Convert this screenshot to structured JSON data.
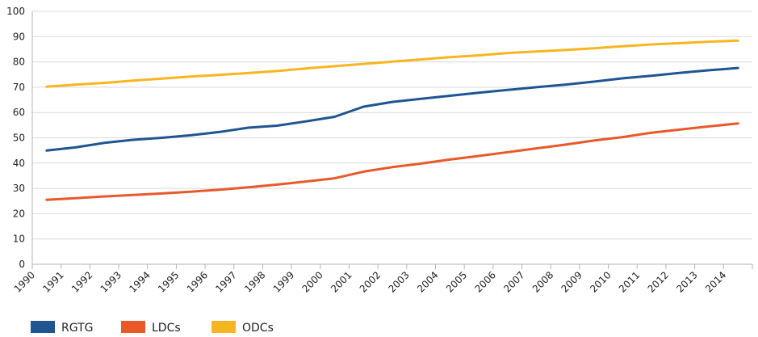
{
  "chart_data": {
    "type": "line",
    "title": "",
    "xlabel": "",
    "ylabel": "",
    "x": [
      "1990",
      "1991",
      "1992",
      "1993",
      "1994",
      "1995",
      "1996",
      "1997",
      "1998",
      "1999",
      "2000",
      "2001",
      "2002",
      "2003",
      "2004",
      "2005",
      "2006",
      "2007",
      "2008",
      "2009",
      "2010",
      "2011",
      "2012",
      "2013",
      "2014"
    ],
    "ylim": [
      0,
      100
    ],
    "yticks": [
      0,
      10,
      20,
      30,
      40,
      50,
      60,
      70,
      80,
      90,
      100
    ],
    "grid": true,
    "legend_position": "bottom-left",
    "series": [
      {
        "name": "RGTG",
        "color": "#1f5590",
        "values": [
          45.0,
          46.2,
          48.0,
          49.2,
          50.0,
          51.0,
          52.3,
          54.0,
          54.8,
          56.5,
          58.3,
          62.3,
          64.2,
          65.4,
          66.6,
          67.8,
          68.9,
          70.0,
          71.0,
          72.2,
          73.5,
          74.5,
          75.7,
          76.7,
          77.6
        ]
      },
      {
        "name": "LDCs",
        "color": "#e8592a",
        "values": [
          25.5,
          26.1,
          26.8,
          27.4,
          28.0,
          28.7,
          29.5,
          30.4,
          31.5,
          32.7,
          34.0,
          36.6,
          38.4,
          39.8,
          41.4,
          42.8,
          44.3,
          45.8,
          47.3,
          48.9,
          50.3,
          52.0,
          53.3,
          54.5,
          55.7
        ]
      },
      {
        "name": "ODCs",
        "color": "#f7b621",
        "values": [
          70.2,
          71.0,
          71.7,
          72.6,
          73.4,
          74.2,
          74.9,
          75.6,
          76.4,
          77.4,
          78.3,
          79.2,
          80.1,
          81.0,
          81.9,
          82.6,
          83.5,
          84.1,
          84.7,
          85.4,
          86.2,
          86.9,
          87.4,
          88.0,
          88.4
        ]
      }
    ]
  }
}
